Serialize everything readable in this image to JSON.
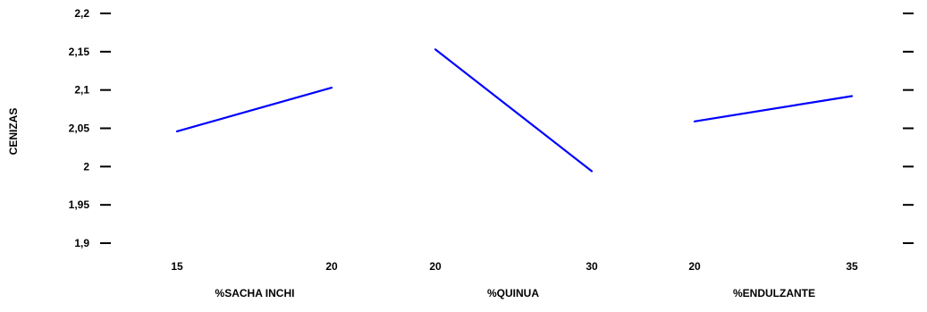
{
  "chart_data": {
    "type": "line",
    "ylabel": "CENIZAS",
    "ylim": [
      1.89,
      2.2
    ],
    "ytick_values": [
      1.9,
      1.95,
      2.0,
      2.05,
      2.1,
      2.15,
      2.2
    ],
    "ytick_labels": [
      "1,9",
      "1,95",
      "2",
      "2,05",
      "2,1",
      "2,15",
      "2,2"
    ],
    "line_color": "#0000ff",
    "panels": [
      {
        "xlabel": "%SACHA INCHI",
        "xtick_labels": [
          "15",
          "20"
        ],
        "x": [
          15,
          20
        ],
        "y": [
          2.046,
          2.103
        ]
      },
      {
        "xlabel": "%QUINUA",
        "xtick_labels": [
          "20",
          "30"
        ],
        "x": [
          20,
          30
        ],
        "y": [
          2.153,
          1.994
        ]
      },
      {
        "xlabel": "%ENDULZANTE",
        "xtick_labels": [
          "20",
          "35"
        ],
        "x": [
          20,
          35
        ],
        "y": [
          2.059,
          2.092
        ]
      }
    ]
  }
}
